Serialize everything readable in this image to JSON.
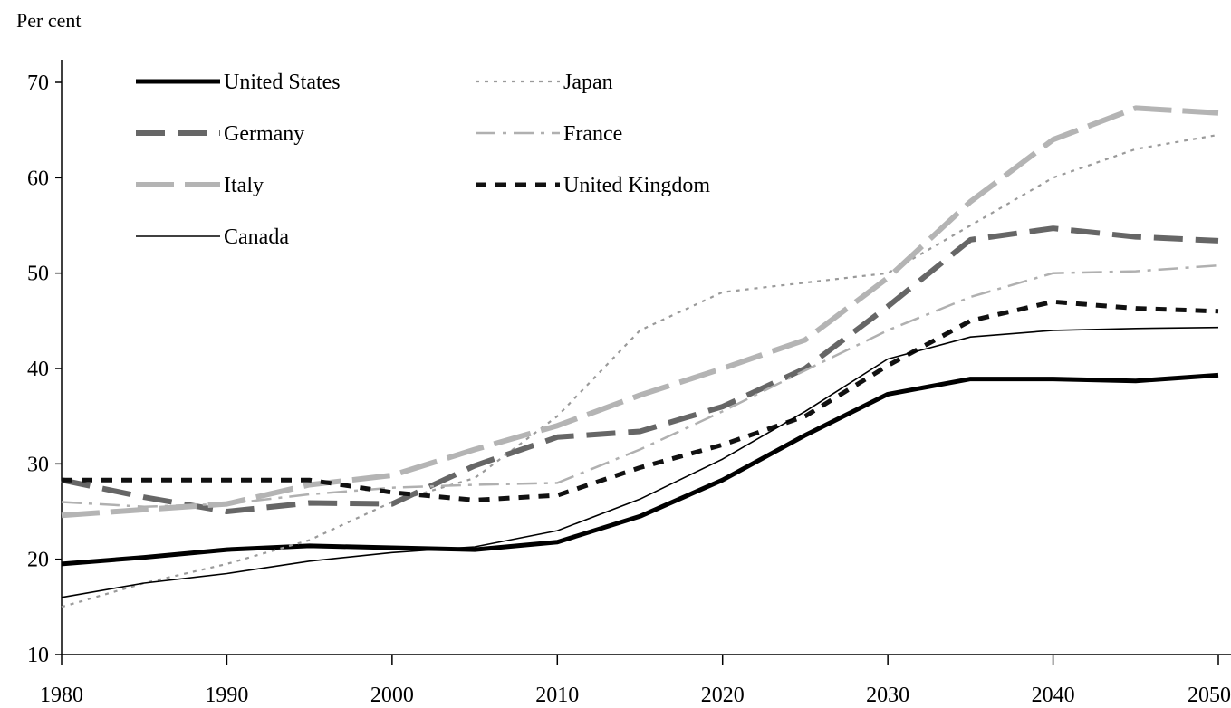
{
  "chart_data": {
    "type": "line",
    "title": "",
    "ylabel": "Per cent",
    "xlabel": "",
    "x": [
      1980,
      1985,
      1990,
      1995,
      2000,
      2005,
      2010,
      2015,
      2020,
      2025,
      2030,
      2035,
      2040,
      2045,
      2050
    ],
    "xticks": [
      "1980",
      "1990",
      "2000",
      "2010",
      "2020",
      "2030",
      "2040",
      "2050"
    ],
    "yticks": [
      "10",
      "20",
      "30",
      "40",
      "50",
      "60",
      "70"
    ],
    "xlim": [
      1980,
      2050
    ],
    "ylim": [
      10,
      70
    ],
    "grid": false,
    "legend_position": "top-left",
    "series": [
      {
        "name": "United States",
        "color": "#000000",
        "style": "solid-thick",
        "values": [
          19.5,
          20.2,
          21.0,
          21.4,
          21.2,
          21.0,
          21.8,
          24.5,
          28.3,
          33.0,
          37.3,
          38.9,
          38.9,
          38.7,
          39.3
        ]
      },
      {
        "name": "Japan",
        "color": "#9a9a9a",
        "style": "dotted",
        "values": [
          15.0,
          17.5,
          19.5,
          22.0,
          26.0,
          28.5,
          35.0,
          44.0,
          48.0,
          49.0,
          50.0,
          55.0,
          60.0,
          63.0,
          64.5
        ]
      },
      {
        "name": "Germany",
        "color": "#666666",
        "style": "dashed",
        "values": [
          28.3,
          26.5,
          25.0,
          25.9,
          25.8,
          29.8,
          32.8,
          33.4,
          36.0,
          40.0,
          46.5,
          53.5,
          54.7,
          53.8,
          53.4
        ]
      },
      {
        "name": "France",
        "color": "#b0b0b0",
        "style": "dash-dot",
        "values": [
          26.0,
          25.5,
          25.8,
          26.8,
          27.5,
          27.8,
          28.0,
          31.5,
          35.5,
          39.8,
          44.0,
          47.5,
          50.0,
          50.2,
          50.8
        ]
      },
      {
        "name": "Italy",
        "color": "#b4b4b4",
        "style": "long-dash",
        "values": [
          24.6,
          25.2,
          25.8,
          27.8,
          28.8,
          31.5,
          34.0,
          37.2,
          40.0,
          43.0,
          49.5,
          57.5,
          64.0,
          67.3,
          66.8
        ]
      },
      {
        "name": "United Kingdom",
        "color": "#111111",
        "style": "short-dash",
        "values": [
          28.3,
          28.3,
          28.3,
          28.3,
          27.0,
          26.2,
          26.7,
          29.6,
          32.0,
          35.0,
          40.3,
          45.0,
          47.0,
          46.3,
          46.0
        ]
      },
      {
        "name": "Canada",
        "color": "#000000",
        "style": "solid-thin",
        "values": [
          16.0,
          17.5,
          18.5,
          19.8,
          20.7,
          21.3,
          23.0,
          26.3,
          30.5,
          35.5,
          41.0,
          43.3,
          44.0,
          44.2,
          44.3
        ]
      }
    ]
  }
}
